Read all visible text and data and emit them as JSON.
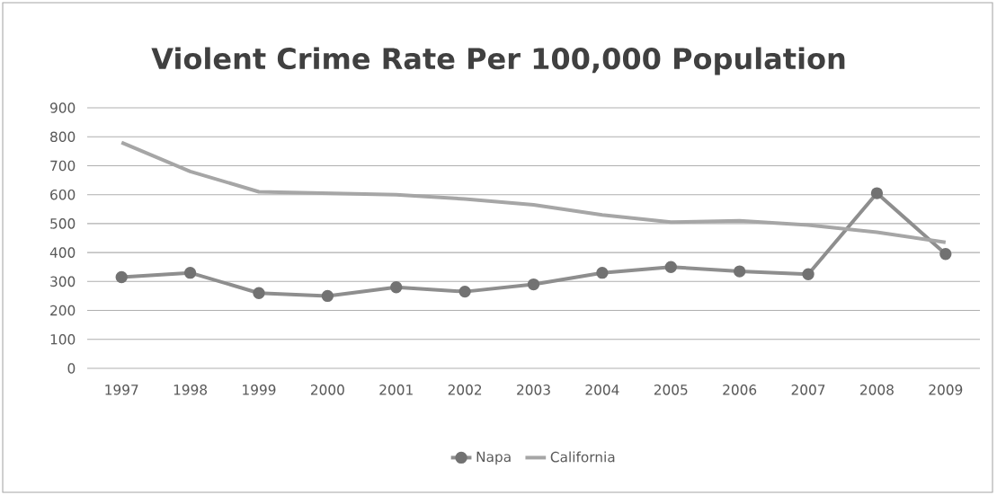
{
  "chart_data": {
    "type": "line",
    "title": "Violent Crime Rate Per 100,000 Population",
    "categories": [
      "1997",
      "1998",
      "1999",
      "2000",
      "2001",
      "2002",
      "2003",
      "2004",
      "2005",
      "2006",
      "2007",
      "2008",
      "2009"
    ],
    "series": [
      {
        "name": "Napa",
        "color": "#8e8e8e",
        "marker": "circle",
        "values": [
          315,
          330,
          260,
          250,
          280,
          265,
          290,
          330,
          350,
          335,
          325,
          605,
          395
        ]
      },
      {
        "name": "California",
        "color": "#a6a6a6",
        "marker": "none",
        "values": [
          780,
          680,
          610,
          605,
          600,
          585,
          565,
          530,
          505,
          510,
          495,
          470,
          435
        ]
      }
    ],
    "ylim": [
      0,
      900
    ],
    "yticks": [
      0,
      100,
      200,
      300,
      400,
      500,
      600,
      700,
      800,
      900
    ],
    "grid": "y",
    "legend": "bottom",
    "line_style": "solid"
  }
}
